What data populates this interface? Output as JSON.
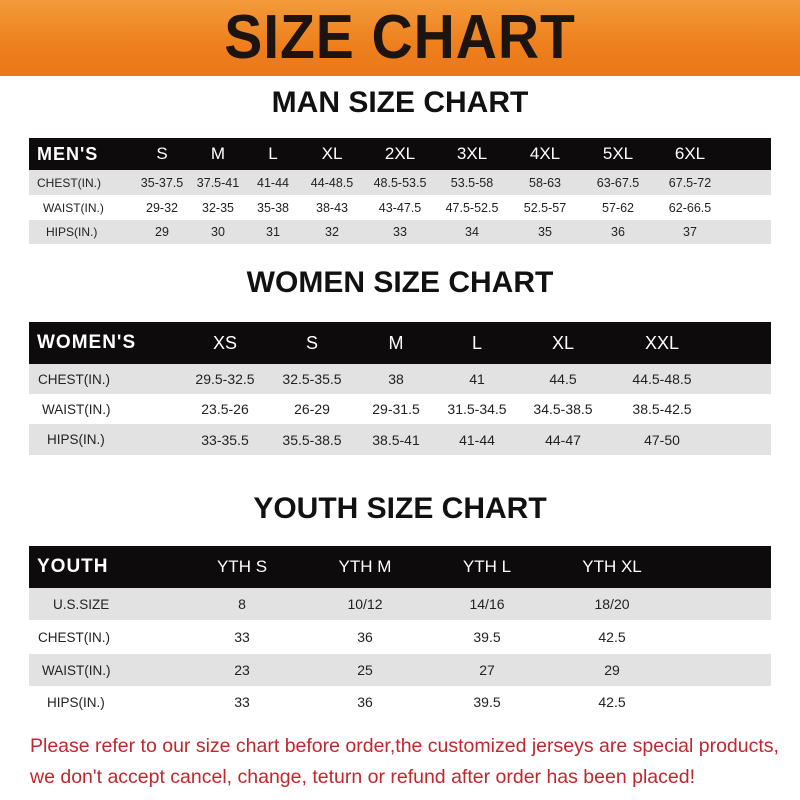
{
  "banner": {
    "title": "SIZE CHART",
    "color": "#ee7f1c"
  },
  "men": {
    "title": "MAN SIZE CHART",
    "header": [
      "MEN'S",
      "S",
      "M",
      "L",
      "XL",
      "2XL",
      "3XL",
      "4XL",
      "5XL",
      "6XL"
    ],
    "rows": [
      [
        "CHEST(IN.)",
        "35-37.5",
        "37.5-41",
        "41-44",
        "44-48.5",
        "48.5-53.5",
        "53.5-58",
        "58-63",
        "63-67.5",
        "67.5-72"
      ],
      [
        "WAIST(IN.)",
        "29-32",
        "32-35",
        "35-38",
        "38-43",
        "43-47.5",
        "47.5-52.5",
        "52.5-57",
        "57-62",
        "62-66.5"
      ],
      [
        "HIPS(IN.)",
        "29",
        "30",
        "31",
        "32",
        "33",
        "34",
        "35",
        "36",
        "37"
      ]
    ]
  },
  "women": {
    "title": "WOMEN SIZE CHART",
    "header": [
      "WOMEN'S",
      "XS",
      "S",
      "M",
      "L",
      "XL",
      "XXL"
    ],
    "rows": [
      [
        "CHEST(IN.)",
        "29.5-32.5",
        "32.5-35.5",
        "38",
        "41",
        "44.5",
        "44.5-48.5"
      ],
      [
        "WAIST(IN.)",
        "23.5-26",
        "26-29",
        "29-31.5",
        "31.5-34.5",
        "34.5-38.5",
        "38.5-42.5"
      ],
      [
        "HIPS(IN.)",
        "33-35.5",
        "35.5-38.5",
        "38.5-41",
        "41-44",
        "44-47",
        "47-50"
      ]
    ]
  },
  "youth": {
    "title": "YOUTH SIZE CHART",
    "header": [
      "YOUTH",
      "YTH S",
      "YTH M",
      "YTH L",
      "YTH XL"
    ],
    "rows": [
      [
        "U.S.SIZE",
        "8",
        "10/12",
        "14/16",
        "18/20"
      ],
      [
        "CHEST(IN.)",
        "33",
        "36",
        "39.5",
        "42.5"
      ],
      [
        "WAIST(IN.)",
        "23",
        "25",
        "27",
        "29"
      ],
      [
        "HIPS(IN.)",
        "33",
        "36",
        "39.5",
        "42.5"
      ]
    ]
  },
  "footer": {
    "line1": "Please refer to our size chart before order,the customized jerseys are special products,",
    "line2": "we don't accept cancel, change, teturn or refund after order has been placed!",
    "color": "#c1272d"
  }
}
